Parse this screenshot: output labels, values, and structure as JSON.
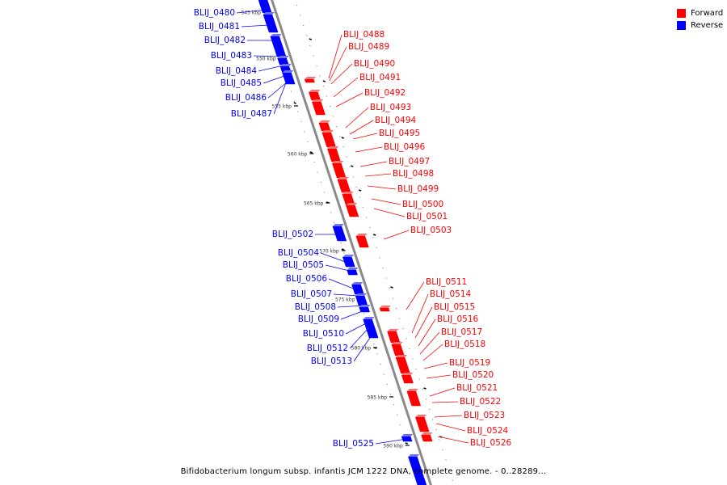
{
  "legend": {
    "forward_label": "Forward",
    "reverse_label": "Reverse",
    "forward_color": "#ff0000",
    "reverse_color": "#0000ff"
  },
  "caption": "Bifidobacterium longum subsp. infantis JCM 1222 DNA, complete genome. - 0..28289...",
  "ruler": {
    "unit": "kbp",
    "ticks": [
      "545 kbp",
      "550 kbp",
      "555 kbp",
      "560 kbp",
      "565 kbp",
      "570 kbp",
      "575 kbp",
      "580 kbp",
      "585 kbp",
      "590 kbp"
    ]
  },
  "genes": {
    "reverse": [
      "BLIJ_0480",
      "BLIJ_0481",
      "BLIJ_0482",
      "BLIJ_0483",
      "BLIJ_0484",
      "BLIJ_0485",
      "BLIJ_0486",
      "BLIJ_0487",
      "BLIJ_0502",
      "BLIJ_0504",
      "BLIJ_0505",
      "BLIJ_0506",
      "BLIJ_0507",
      "BLIJ_0508",
      "BLIJ_0509",
      "BLIJ_0510",
      "BLIJ_0512",
      "BLIJ_0513",
      "BLIJ_0525"
    ],
    "forward": [
      "BLIJ_0488",
      "BLIJ_0489",
      "BLIJ_0490",
      "BLIJ_0491",
      "BLIJ_0492",
      "BLIJ_0493",
      "BLIJ_0494",
      "BLIJ_0495",
      "BLIJ_0496",
      "BLIJ_0497",
      "BLIJ_0498",
      "BLIJ_0499",
      "BLIJ_0500",
      "BLIJ_0501",
      "BLIJ_0503",
      "BLIJ_0511",
      "BLIJ_0514",
      "BLIJ_0515",
      "BLIJ_0516",
      "BLIJ_0517",
      "BLIJ_0518",
      "BLIJ_0519",
      "BLIJ_0520",
      "BLIJ_0521",
      "BLIJ_0522",
      "BLIJ_0523",
      "BLIJ_0524",
      "BLIJ_0526"
    ]
  }
}
